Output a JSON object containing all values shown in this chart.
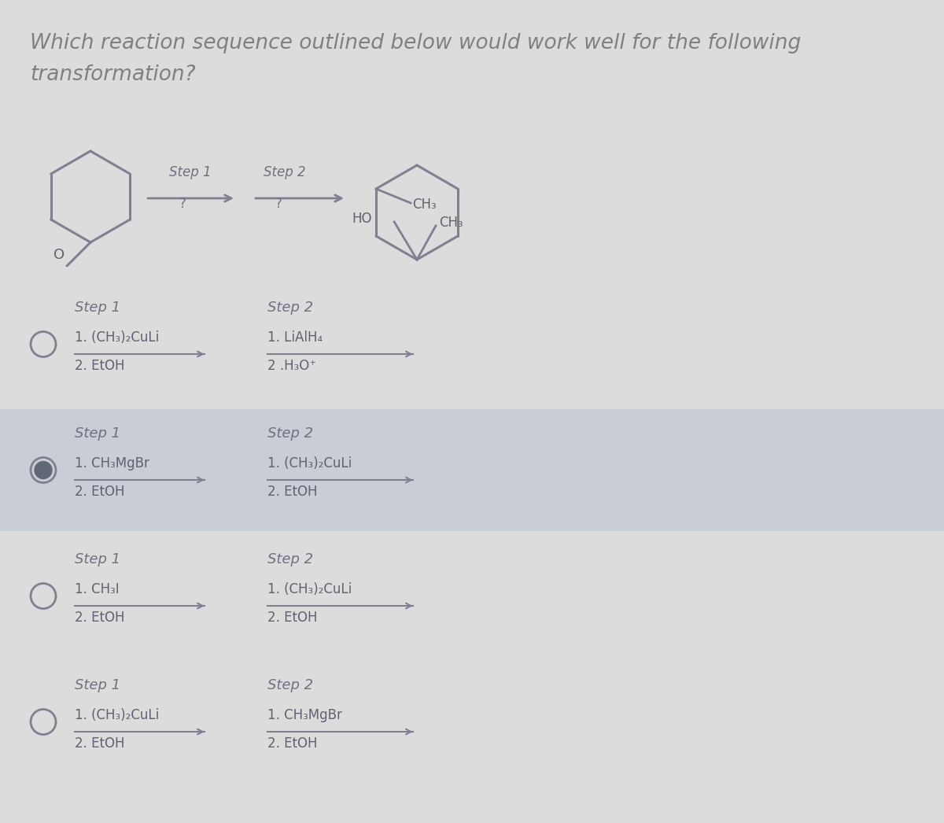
{
  "title_line1": "Which reaction sequence outlined below would work well for the following",
  "title_line2": "transformation?",
  "title_fontsize": 19,
  "title_color": "#808080",
  "bg_color": "#dcdcdc",
  "page_bg": "#e8e8e8",
  "option_bg_colors": [
    "#dcdcdc",
    "#c8cdd6",
    "#dcdcdc",
    "#dcdcdc"
  ],
  "arrow_color": "#808090",
  "text_color": "#606070",
  "label_color": "#707080",
  "radio_selected": 1,
  "options": [
    {
      "step1_label": "Step 1",
      "step1_line1": "1. (CH₃)₂CuLi",
      "step1_line2": "2. EtOH",
      "step2_label": "Step 2",
      "step2_line1": "1. LiAlH₄",
      "step2_line2": "2 .H₃O⁺"
    },
    {
      "step1_label": "Step 1",
      "step1_line1": "1. CH₃MgBr",
      "step1_line2": "2. EtOH",
      "step2_label": "Step 2",
      "step2_line1": "1. (CH₃)₂CuLi",
      "step2_line2": "2. EtOH"
    },
    {
      "step1_label": "Step 1",
      "step1_line1": "1. CH₃I",
      "step1_line2": "2. EtOH",
      "step2_label": "Step 2",
      "step2_line1": "1. (CH₃)₂CuLi",
      "step2_line2": "2. EtOH"
    },
    {
      "step1_label": "Step 1",
      "step1_line1": "1. (CH₃)₂CuLi",
      "step1_line2": "2. EtOH",
      "step2_label": "Step 2",
      "step2_line1": "1. CH₃MgBr",
      "step2_line2": "2. EtOH"
    }
  ]
}
